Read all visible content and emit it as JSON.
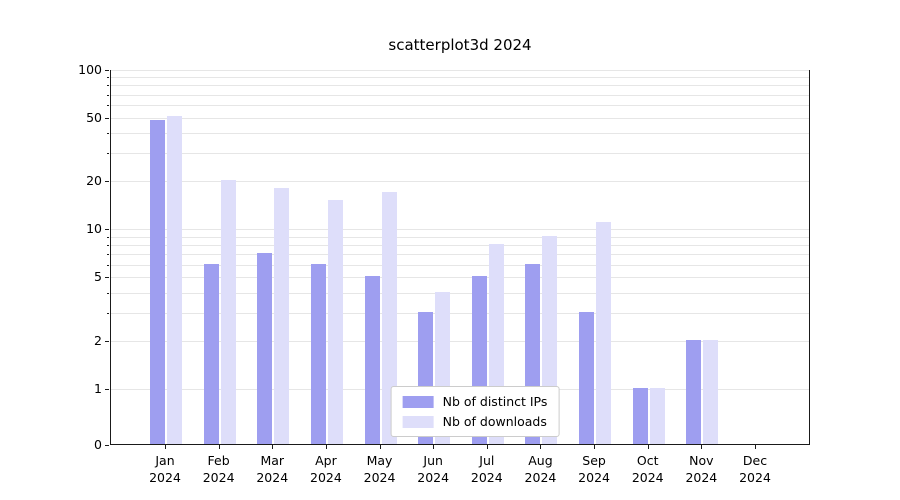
{
  "figure": {
    "title": "scatterplot3d 2024"
  },
  "colors": {
    "ips": "#9e9ef0",
    "downloads": "#dedefa",
    "grid": "#e6e6e6",
    "spine": "#1a1a1a",
    "legend_border": "#cccccc",
    "background": "#ffffff"
  },
  "chart_data": {
    "type": "bar",
    "title": "scatterplot3d 2024",
    "categories": [
      "Jan",
      "Feb",
      "Mar",
      "Apr",
      "May",
      "Jun",
      "Jul",
      "Aug",
      "Sep",
      "Oct",
      "Nov",
      "Dec"
    ],
    "year_label": "2024",
    "series": [
      {
        "name": "Nb of distinct IPs",
        "color": "#9e9ef0",
        "values": [
          48,
          6,
          7,
          6,
          5,
          3,
          5,
          6,
          3,
          1,
          2,
          0
        ]
      },
      {
        "name": "Nb of downloads",
        "color": "#dedefa",
        "values": [
          51,
          20,
          18,
          15,
          17,
          4,
          8,
          9,
          11,
          1,
          2,
          0
        ]
      }
    ],
    "yscale": "symlog",
    "ylim": [
      0,
      100
    ],
    "yticks": [
      0,
      1,
      2,
      5,
      10,
      20,
      50,
      100
    ],
    "yticks_minor": [
      3,
      4,
      6,
      7,
      8,
      9,
      30,
      40,
      60,
      70,
      80,
      90
    ],
    "grid": "horizontal",
    "legend": {
      "position": "lower-center-inside",
      "entries": [
        "Nb of distinct IPs",
        "Nb of downloads"
      ]
    }
  }
}
